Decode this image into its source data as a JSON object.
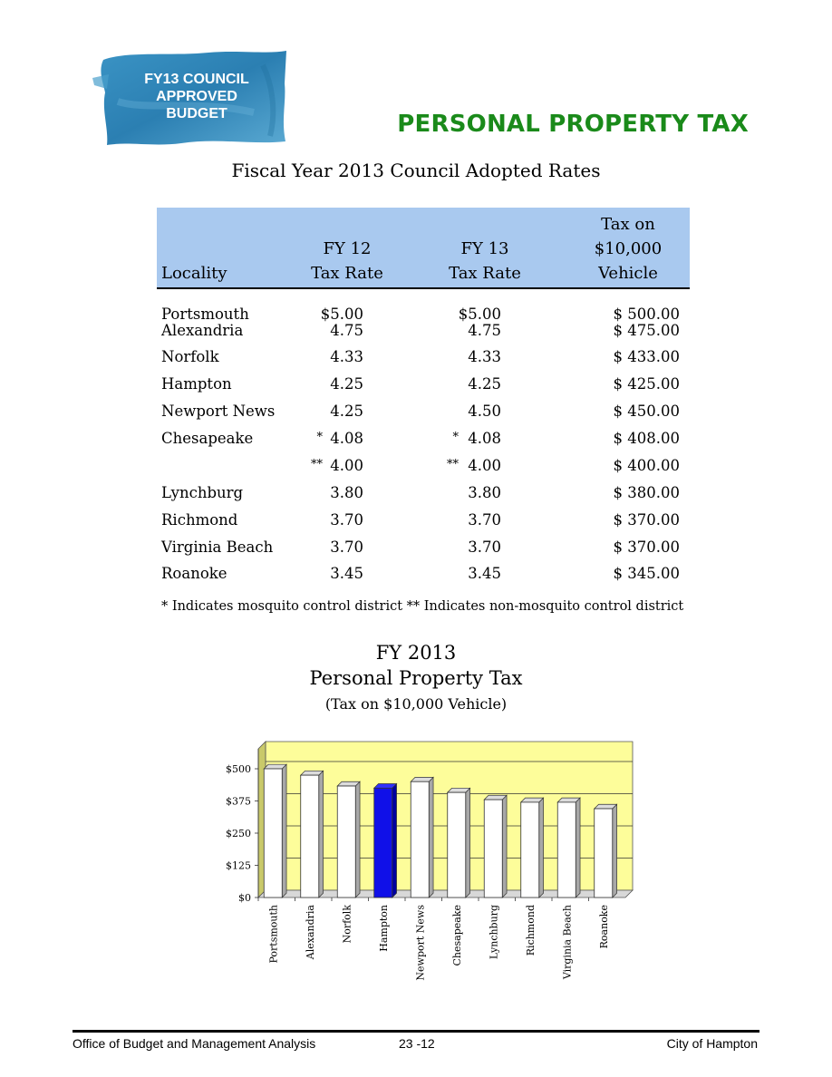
{
  "header": {
    "badge_lines": [
      "FY13 COUNCIL",
      "APPROVED",
      "BUDGET"
    ],
    "section_title": "PERSONAL PROPERTY TAX",
    "badge_color": "#2f86b8",
    "title_color": "#1a8a1a"
  },
  "table": {
    "title": "Fiscal Year 2013 Council Adopted Rates",
    "header_bg": "#a9c9ef",
    "columns": {
      "locality": "Locality",
      "fy12_top": "FY 12",
      "fy12_bottom": "Tax Rate",
      "fy13_top": "FY 13",
      "fy13_bottom": "Tax Rate",
      "veh_top": "Tax on",
      "veh_mid": "$10,000",
      "veh_bottom": "Vehicle"
    },
    "rows": [
      {
        "locality": "Portsmouth",
        "fy12": "$5.00",
        "fy13": "$5.00",
        "vehicle": "$ 500.00",
        "m12": "",
        "m13": ""
      },
      {
        "locality": "Alexandria",
        "fy12": "4.75",
        "fy13": "4.75",
        "vehicle": "$ 475.00",
        "m12": "",
        "m13": ""
      },
      {
        "locality": "Norfolk",
        "fy12": "4.33",
        "fy13": "4.33",
        "vehicle": "$ 433.00",
        "m12": "",
        "m13": ""
      },
      {
        "locality": "Hampton",
        "fy12": "4.25",
        "fy13": "4.25",
        "vehicle": "$ 425.00",
        "m12": "",
        "m13": ""
      },
      {
        "locality": "Newport News",
        "fy12": "4.25",
        "fy13": "4.50",
        "vehicle": "$ 450.00",
        "m12": "",
        "m13": ""
      },
      {
        "locality": "Chesapeake",
        "fy12": "4.08",
        "fy13": "4.08",
        "vehicle": "$ 408.00",
        "m12": "*",
        "m13": "*"
      },
      {
        "locality": "",
        "fy12": "4.00",
        "fy13": "4.00",
        "vehicle": "$ 400.00",
        "m12": "**",
        "m13": "**"
      },
      {
        "locality": "Lynchburg",
        "fy12": "3.80",
        "fy13": "3.80",
        "vehicle": "$ 380.00",
        "m12": "",
        "m13": ""
      },
      {
        "locality": "Richmond",
        "fy12": "3.70",
        "fy13": "3.70",
        "vehicle": "$ 370.00",
        "m12": "",
        "m13": ""
      },
      {
        "locality": "Virginia Beach",
        "fy12": "3.70",
        "fy13": "3.70",
        "vehicle": "$ 370.00",
        "m12": "",
        "m13": ""
      },
      {
        "locality": "Roanoke",
        "fy12": "3.45",
        "fy13": "3.45",
        "vehicle": "$ 345.00",
        "m12": "",
        "m13": ""
      }
    ],
    "footnote": "* Indicates mosquito control district  ** Indicates non-mosquito control district"
  },
  "chart_titles": {
    "line1": "FY 2013",
    "line2": "Personal Property Tax",
    "line3": "(Tax on $10,000 Vehicle)"
  },
  "chart_data": {
    "type": "bar",
    "categories": [
      "Portsmouth",
      "Alexandria",
      "Norfolk",
      "Hampton",
      "Newport News",
      "Chesapeake",
      "Lynchburg",
      "Richmond",
      "Virginia Beach",
      "Roanoke"
    ],
    "values": [
      500,
      475,
      433,
      425,
      450,
      408,
      380,
      370,
      370,
      345
    ],
    "yticks": [
      "$0",
      "$125",
      "$250",
      "$375",
      "$500"
    ],
    "ytick_values": [
      0,
      125,
      250,
      375,
      500
    ],
    "ylim": [
      0,
      500
    ],
    "grid": true,
    "highlight": "Hampton",
    "colors": {
      "plot_bg": "#fdfd9a",
      "bar": "#ffffff",
      "highlight": "#1010e8",
      "side": "#a8a8a8"
    }
  },
  "footer": {
    "left": "Office of Budget and Management Analysis",
    "center": "23 -12",
    "right": "City of Hampton"
  }
}
